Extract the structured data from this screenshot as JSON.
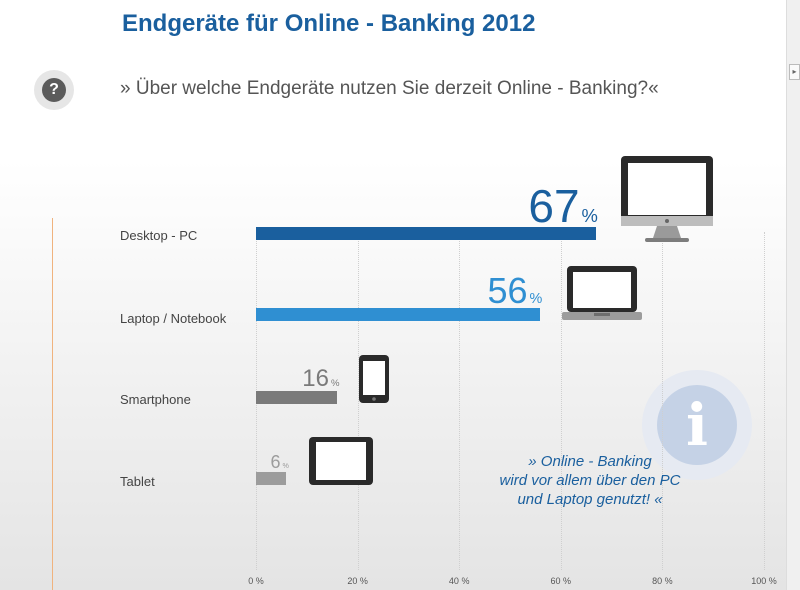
{
  "header": {
    "title": "Endgeräte für Online - Banking 2012",
    "question": "» Über welche Endgeräte nutzen Sie derzeit Online - Banking?«",
    "question_icon": "?"
  },
  "info_icon": "i",
  "note": {
    "line1": "» Online - Banking",
    "line2": "wird vor allem über den PC",
    "line3": "und Laptop genutzt! «"
  },
  "scroll_icon": "scroll-up-arrow",
  "chart_data": {
    "type": "bar",
    "orientation": "horizontal",
    "categories": [
      "Desktop - PC",
      "Laptop / Notebook",
      "Smartphone",
      "Tablet"
    ],
    "values": [
      67,
      56,
      16,
      6
    ],
    "value_labels": [
      "67",
      "56",
      "16",
      "6"
    ],
    "value_unit": "%",
    "colors": [
      "#1a5f9e",
      "#2f8fd2",
      "#7a7a7a",
      "#9c9c9c"
    ],
    "devices": [
      "desktop-monitor-icon",
      "laptop-icon",
      "smartphone-icon",
      "tablet-icon"
    ],
    "xlim": [
      0,
      100
    ],
    "ticks": [
      0,
      20,
      40,
      60,
      80,
      100
    ],
    "tick_labels": [
      "0 %",
      "20 %",
      "40 %",
      "60 %",
      "80 %",
      "100 %"
    ],
    "grid": true
  }
}
